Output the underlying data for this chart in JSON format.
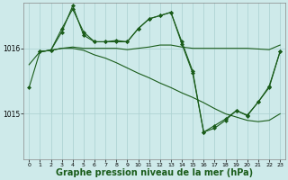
{
  "background_color": "#ceeaea",
  "grid_color": "#aad0d0",
  "line_color": "#1a5c1a",
  "xlabel": "Graphe pression niveau de la mer (hPa)",
  "xlabel_fontsize": 7,
  "xlim": [
    -0.5,
    23.5
  ],
  "ylim": [
    1014.3,
    1016.7
  ],
  "xticks": [
    0,
    1,
    2,
    3,
    4,
    5,
    6,
    7,
    8,
    9,
    10,
    11,
    12,
    13,
    14,
    15,
    16,
    17,
    18,
    19,
    20,
    21,
    22,
    23
  ],
  "yticks": [
    1015.0,
    1016.0
  ],
  "series": [
    {
      "x": [
        0,
        1,
        2,
        3,
        4,
        5,
        6,
        7,
        8,
        9,
        10,
        11,
        12,
        13,
        14,
        15,
        16,
        17,
        18,
        19,
        20,
        21,
        22,
        23
      ],
      "y": [
        1015.75,
        1015.95,
        1015.97,
        1016.0,
        1016.02,
        1016.0,
        1016.0,
        1016.0,
        1016.0,
        1015.98,
        1016.0,
        1016.02,
        1016.05,
        1016.05,
        1016.02,
        1016.0,
        1016.0,
        1016.0,
        1016.0,
        1016.0,
        1016.0,
        1015.99,
        1015.98,
        1016.05
      ],
      "marker": false,
      "linewidth": 0.8
    },
    {
      "x": [
        1,
        2,
        3,
        4,
        5,
        6,
        7,
        8,
        9,
        10,
        11,
        12,
        13,
        14,
        15,
        16,
        17,
        18,
        19,
        20,
        21,
        22,
        23
      ],
      "y": [
        1015.95,
        1015.97,
        1016.3,
        1016.6,
        1016.25,
        1016.1,
        1016.1,
        1016.12,
        1016.1,
        1016.3,
        1016.45,
        1016.5,
        1016.55,
        1016.1,
        1015.65,
        1014.72,
        1014.78,
        1014.9,
        1015.05,
        1014.98,
        1015.18,
        1015.4,
        1015.95
      ],
      "marker": true,
      "linewidth": 0.8
    },
    {
      "x": [
        1,
        2,
        3,
        4,
        5,
        6,
        7,
        8,
        9,
        10,
        11,
        12,
        13,
        14,
        15,
        16,
        17,
        18,
        19,
        20,
        21,
        22,
        23
      ],
      "y": [
        1015.95,
        1015.97,
        1016.0,
        1016.0,
        1015.97,
        1015.9,
        1015.85,
        1015.78,
        1015.7,
        1015.62,
        1015.55,
        1015.47,
        1015.4,
        1015.32,
        1015.25,
        1015.17,
        1015.08,
        1015.0,
        1014.95,
        1014.9,
        1014.88,
        1014.9,
        1015.0
      ],
      "marker": false,
      "linewidth": 0.8
    },
    {
      "x": [
        0,
        1,
        2,
        3,
        4,
        5,
        6,
        7,
        8,
        9,
        10,
        11,
        12,
        13,
        14,
        15,
        16,
        17,
        18,
        19,
        20,
        21,
        22,
        23
      ],
      "y": [
        1015.4,
        1015.95,
        1015.97,
        1016.25,
        1016.65,
        1016.2,
        1016.1,
        1016.1,
        1016.1,
        1016.1,
        1016.3,
        1016.45,
        1016.5,
        1016.55,
        1016.07,
        1015.62,
        1014.72,
        1014.82,
        1014.92,
        1015.05,
        1014.97,
        1015.18,
        1015.42,
        1015.95
      ],
      "marker": true,
      "linewidth": 0.8
    }
  ]
}
